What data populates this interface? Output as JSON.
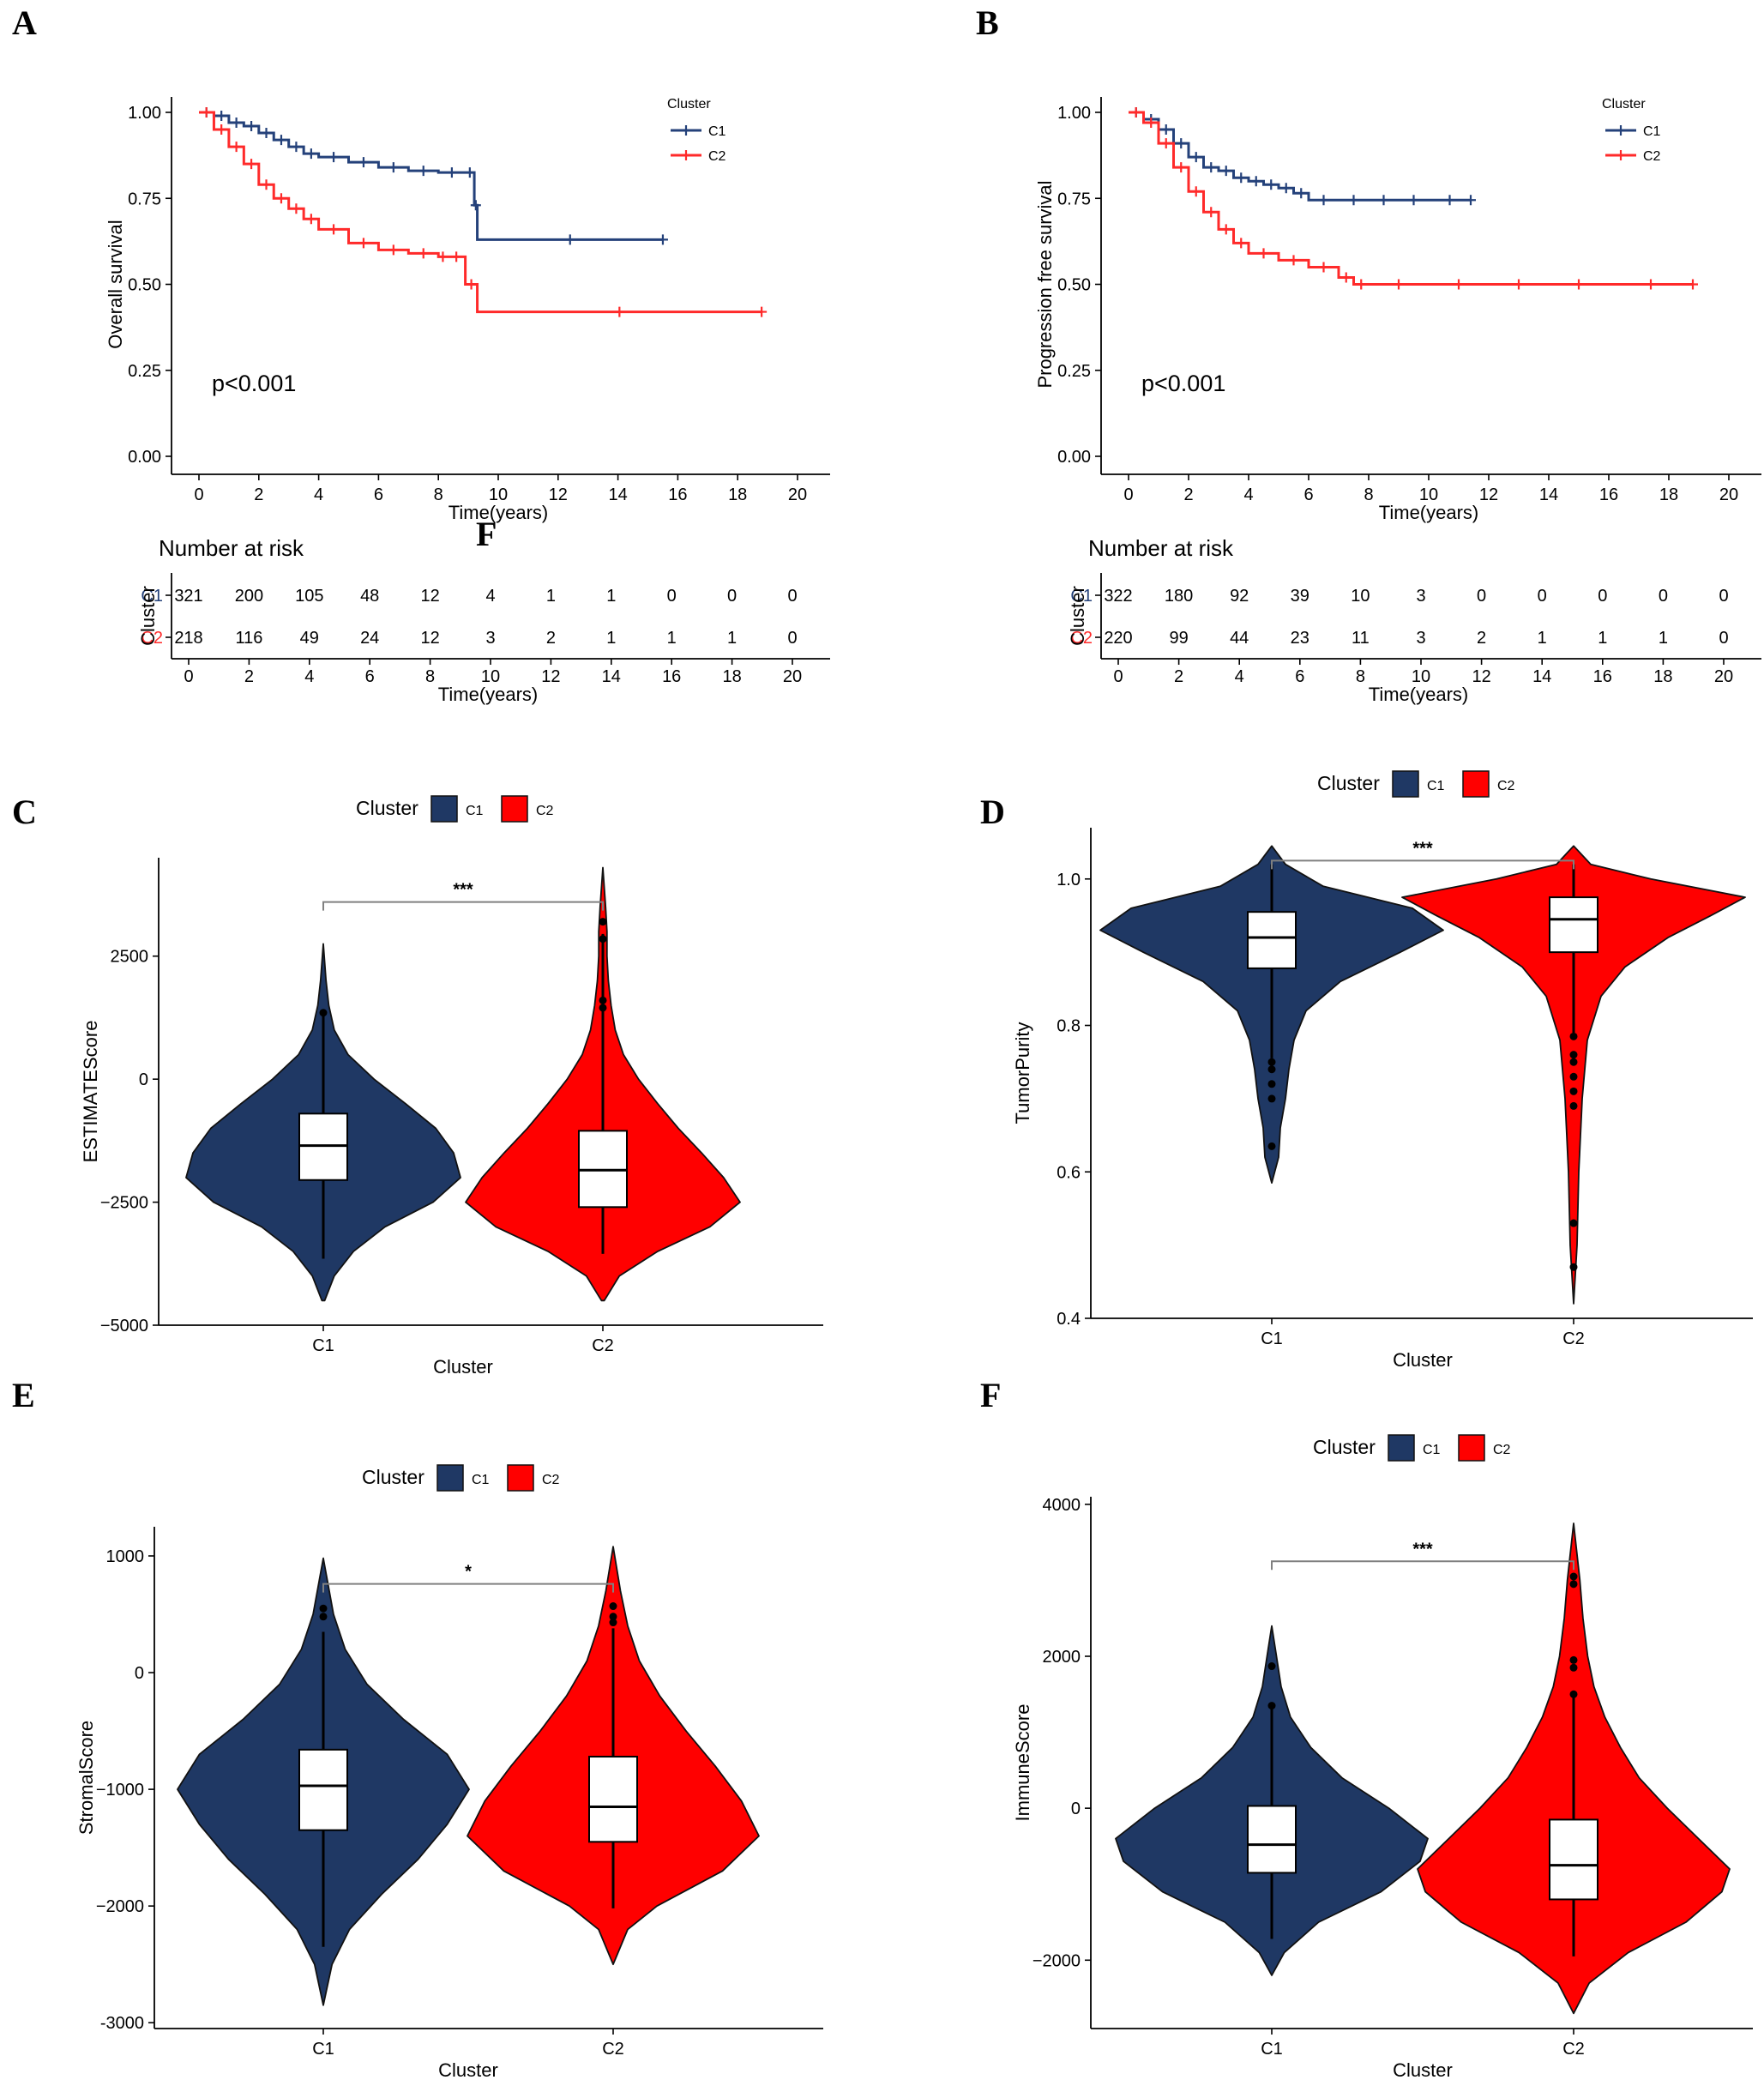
{
  "colors": {
    "c1": "#1f3864",
    "c2": "#ff0000",
    "c1_line": "#24417a",
    "c2_line": "#ff2a2a",
    "bracket": "#808080"
  },
  "chart_data": [
    {
      "panel": "A",
      "type": "line",
      "subtype": "kaplan-meier",
      "ylabel": "Overall survival",
      "xlabel": "Time(years)",
      "xlim": [
        0,
        20
      ],
      "ylim": [
        0,
        1
      ],
      "xticks": [
        "0",
        "2",
        "4",
        "6",
        "8",
        "10",
        "12",
        "14",
        "16",
        "18",
        "20"
      ],
      "yticks": [
        "0.00",
        "0.25",
        "0.50",
        "0.75",
        "1.00"
      ],
      "legend": {
        "title": "Cluster",
        "items": [
          "C1",
          "C2"
        ]
      },
      "pvalue": "p<0.001",
      "series": [
        {
          "name": "C1",
          "x": [
            0,
            0.5,
            1,
            1.5,
            2,
            2.5,
            3,
            3.5,
            4,
            5,
            6,
            7,
            8,
            8.9,
            9.2,
            9.3,
            15.5
          ],
          "y": [
            1,
            0.99,
            0.97,
            0.96,
            0.94,
            0.92,
            0.9,
            0.88,
            0.87,
            0.855,
            0.84,
            0.83,
            0.825,
            0.825,
            0.73,
            0.63,
            0.63
          ]
        },
        {
          "name": "C2",
          "x": [
            0,
            0.5,
            1,
            1.5,
            2,
            2.5,
            3,
            3.5,
            4,
            5,
            6,
            7,
            8,
            8.3,
            8.9,
            9.3,
            18.8
          ],
          "y": [
            1,
            0.95,
            0.9,
            0.85,
            0.79,
            0.75,
            0.72,
            0.69,
            0.66,
            0.62,
            0.6,
            0.59,
            0.58,
            0.58,
            0.5,
            0.42,
            0.42
          ]
        }
      ],
      "risk_table": {
        "title": "Number at risk",
        "ylabel": "Cluster",
        "xlabel": "Time(years)",
        "times": [
          "0",
          "2",
          "4",
          "6",
          "8",
          "10",
          "12",
          "14",
          "16",
          "18",
          "20"
        ],
        "rows": [
          {
            "label": "C1",
            "values": [
              "321",
              "200",
              "105",
              "48",
              "12",
              "4",
              "1",
              "1",
              "0",
              "0",
              "0"
            ]
          },
          {
            "label": "C2",
            "values": [
              "218",
              "116",
              "49",
              "24",
              "12",
              "3",
              "2",
              "1",
              "1",
              "1",
              "0"
            ]
          }
        ]
      },
      "stray_label": "F"
    },
    {
      "panel": "B",
      "type": "line",
      "subtype": "kaplan-meier",
      "ylabel": "Progression free survival",
      "xlabel": "Time(years)",
      "xlim": [
        0,
        20
      ],
      "ylim": [
        0,
        1
      ],
      "xticks": [
        "0",
        "2",
        "4",
        "6",
        "8",
        "10",
        "12",
        "14",
        "16",
        "18",
        "20"
      ],
      "yticks": [
        "0.00",
        "0.25",
        "0.50",
        "0.75",
        "1.00"
      ],
      "legend": {
        "title": "Cluster",
        "items": [
          "C1",
          "C2"
        ]
      },
      "pvalue": "p<0.001",
      "series": [
        {
          "name": "C1",
          "x": [
            0,
            0.5,
            1,
            1.5,
            2,
            2.5,
            3,
            3.5,
            4,
            4.5,
            5,
            5.5,
            6,
            7,
            8,
            9,
            10,
            11.4
          ],
          "y": [
            1,
            0.98,
            0.95,
            0.91,
            0.87,
            0.84,
            0.83,
            0.81,
            0.8,
            0.79,
            0.78,
            0.765,
            0.745,
            0.745,
            0.745,
            0.745,
            0.745,
            0.745
          ]
        },
        {
          "name": "C2",
          "x": [
            0,
            0.5,
            1,
            1.5,
            2,
            2.5,
            3,
            3.5,
            4,
            5,
            6,
            7,
            7.5,
            8,
            10,
            12,
            14,
            16,
            18.8
          ],
          "y": [
            1,
            0.97,
            0.91,
            0.84,
            0.77,
            0.71,
            0.66,
            0.62,
            0.59,
            0.57,
            0.55,
            0.52,
            0.5,
            0.5,
            0.5,
            0.5,
            0.5,
            0.5,
            0.5
          ]
        }
      ],
      "risk_table": {
        "title": "Number at risk",
        "ylabel": "Cluster",
        "xlabel": "Time(years)",
        "times": [
          "0",
          "2",
          "4",
          "6",
          "8",
          "10",
          "12",
          "14",
          "16",
          "18",
          "20"
        ],
        "rows": [
          {
            "label": "C1",
            "values": [
              "322",
              "180",
              "92",
              "39",
              "10",
              "3",
              "0",
              "0",
              "0",
              "0",
              "0"
            ]
          },
          {
            "label": "C2",
            "values": [
              "220",
              "99",
              "44",
              "23",
              "11",
              "3",
              "2",
              "1",
              "1",
              "1",
              "0"
            ]
          }
        ]
      }
    },
    {
      "panel": "C",
      "type": "violin",
      "ylabel": "ESTIMATEScore",
      "xlabel": "Cluster",
      "categories": [
        "C1",
        "C2"
      ],
      "ylim": [
        -5000,
        4500
      ],
      "yticks": [
        -5000,
        -2500,
        0,
        2500
      ],
      "ytick_labels": [
        "−5000",
        "−2500",
        "0",
        "2500"
      ],
      "legend": {
        "title": "Cluster",
        "items": [
          "C1",
          "C2"
        ]
      },
      "significance": "***",
      "bracket_y": 3600,
      "groups": [
        {
          "name": "C1",
          "min": -4500,
          "max": 2750,
          "q1": -2050,
          "median": -1350,
          "q3": -700,
          "whisker_low": -3650,
          "whisker_high": 1350,
          "outliers": [
            1350
          ],
          "density": [
            [
              -4500,
              0.01
            ],
            [
              -4000,
              0.08
            ],
            [
              -3500,
              0.22
            ],
            [
              -3000,
              0.45
            ],
            [
              -2500,
              0.8
            ],
            [
              -2000,
              1.0
            ],
            [
              -1500,
              0.95
            ],
            [
              -1000,
              0.82
            ],
            [
              -500,
              0.6
            ],
            [
              0,
              0.37
            ],
            [
              500,
              0.18
            ],
            [
              1000,
              0.08
            ],
            [
              1500,
              0.04
            ],
            [
              2000,
              0.02
            ],
            [
              2750,
              0.0
            ]
          ]
        },
        {
          "name": "C2",
          "min": -4500,
          "max": 4300,
          "q1": -2600,
          "median": -1850,
          "q3": -1050,
          "whisker_low": -3550,
          "whisker_high": 2950,
          "outliers": [
            1450,
            1600,
            2850,
            3200
          ],
          "density": [
            [
              -4500,
              0.01
            ],
            [
              -4000,
              0.12
            ],
            [
              -3500,
              0.4
            ],
            [
              -3000,
              0.78
            ],
            [
              -2500,
              1.0
            ],
            [
              -2000,
              0.88
            ],
            [
              -1500,
              0.72
            ],
            [
              -1000,
              0.55
            ],
            [
              -500,
              0.4
            ],
            [
              0,
              0.26
            ],
            [
              500,
              0.15
            ],
            [
              1000,
              0.09
            ],
            [
              1500,
              0.06
            ],
            [
              2000,
              0.04
            ],
            [
              2500,
              0.03
            ],
            [
              3000,
              0.03
            ],
            [
              3500,
              0.02
            ],
            [
              4300,
              0.0
            ]
          ]
        }
      ]
    },
    {
      "panel": "D",
      "type": "violin",
      "ylabel": "TumorPurity",
      "xlabel": "Cluster",
      "categories": [
        "C1",
        "C2"
      ],
      "ylim": [
        0.4,
        1.07
      ],
      "yticks": [
        0.4,
        0.6,
        0.8,
        1.0
      ],
      "ytick_labels": [
        "0.4",
        "0.6",
        "0.8",
        "1.0"
      ],
      "legend": {
        "title": "Cluster",
        "items": [
          "C1",
          "C2"
        ]
      },
      "significance": "***",
      "bracket_y": 1.025,
      "groups": [
        {
          "name": "C1",
          "min": 0.585,
          "max": 1.045,
          "q1": 0.878,
          "median": 0.92,
          "q3": 0.955,
          "whisker_low": 0.755,
          "whisker_high": 1.02,
          "outliers": [
            0.7,
            0.72,
            0.74,
            0.75,
            0.635
          ],
          "density": [
            [
              0.585,
              0.0
            ],
            [
              0.62,
              0.04
            ],
            [
              0.66,
              0.05
            ],
            [
              0.7,
              0.08
            ],
            [
              0.74,
              0.1
            ],
            [
              0.78,
              0.13
            ],
            [
              0.82,
              0.2
            ],
            [
              0.86,
              0.4
            ],
            [
              0.9,
              0.75
            ],
            [
              0.93,
              1.0
            ],
            [
              0.96,
              0.82
            ],
            [
              0.99,
              0.3
            ],
            [
              1.02,
              0.08
            ],
            [
              1.045,
              0.0
            ]
          ]
        },
        {
          "name": "C2",
          "min": 0.42,
          "max": 1.045,
          "q1": 0.9,
          "median": 0.945,
          "q3": 0.975,
          "whisker_low": 0.79,
          "whisker_high": 1.02,
          "outliers": [
            0.785,
            0.76,
            0.75,
            0.73,
            0.71,
            0.69,
            0.53,
            0.47
          ],
          "density": [
            [
              0.42,
              0.0
            ],
            [
              0.5,
              0.02
            ],
            [
              0.6,
              0.03
            ],
            [
              0.7,
              0.05
            ],
            [
              0.78,
              0.08
            ],
            [
              0.84,
              0.16
            ],
            [
              0.88,
              0.3
            ],
            [
              0.92,
              0.55
            ],
            [
              0.95,
              0.8
            ],
            [
              0.975,
              1.0
            ],
            [
              1.0,
              0.45
            ],
            [
              1.02,
              0.1
            ],
            [
              1.045,
              0.0
            ]
          ]
        }
      ]
    },
    {
      "panel": "E",
      "type": "violin",
      "ylabel": "StromalScore",
      "xlabel": "Cluster",
      "categories": [
        "C1",
        "C2"
      ],
      "ylim": [
        -3050,
        1250
      ],
      "yticks": [
        -3000,
        -2000,
        -1000,
        0,
        1000
      ],
      "ytick_labels": [
        "-3000",
        "−2000",
        "−1000",
        "0",
        "1000"
      ],
      "legend": {
        "title": "Cluster",
        "items": [
          "C1",
          "C2"
        ]
      },
      "significance": "*",
      "bracket_y": 760,
      "groups": [
        {
          "name": "C1",
          "min": -2850,
          "max": 980,
          "q1": -1350,
          "median": -970,
          "q3": -660,
          "whisker_low": -2350,
          "whisker_high": 350,
          "outliers": [
            480,
            550
          ],
          "density": [
            [
              -2850,
              0.0
            ],
            [
              -2500,
              0.06
            ],
            [
              -2200,
              0.18
            ],
            [
              -1900,
              0.4
            ],
            [
              -1600,
              0.65
            ],
            [
              -1300,
              0.85
            ],
            [
              -1000,
              1.0
            ],
            [
              -700,
              0.85
            ],
            [
              -400,
              0.55
            ],
            [
              -100,
              0.3
            ],
            [
              200,
              0.15
            ],
            [
              500,
              0.07
            ],
            [
              980,
              0.0
            ]
          ]
        },
        {
          "name": "C2",
          "min": -2500,
          "max": 1080,
          "q1": -1450,
          "median": -1150,
          "q3": -720,
          "whisker_low": -2020,
          "whisker_high": 380,
          "outliers": [
            430,
            480,
            570
          ],
          "density": [
            [
              -2500,
              0.0
            ],
            [
              -2200,
              0.1
            ],
            [
              -2000,
              0.3
            ],
            [
              -1700,
              0.75
            ],
            [
              -1400,
              1.0
            ],
            [
              -1100,
              0.88
            ],
            [
              -800,
              0.7
            ],
            [
              -500,
              0.5
            ],
            [
              -200,
              0.32
            ],
            [
              100,
              0.18
            ],
            [
              400,
              0.1
            ],
            [
              700,
              0.05
            ],
            [
              1080,
              0.0
            ]
          ]
        }
      ]
    },
    {
      "panel": "F",
      "type": "violin",
      "ylabel": "ImmuneScore",
      "xlabel": "Cluster",
      "categories": [
        "C1",
        "C2"
      ],
      "ylim": [
        -2900,
        4100
      ],
      "yticks": [
        -2000,
        0,
        2000,
        4000
      ],
      "ytick_labels": [
        "−2000",
        "0",
        "2000",
        "4000"
      ],
      "legend": {
        "title": "Cluster",
        "items": [
          "C1",
          "C2"
        ]
      },
      "significance": "***",
      "bracket_y": 3250,
      "groups": [
        {
          "name": "C1",
          "min": -2200,
          "max": 2400,
          "q1": -850,
          "median": -480,
          "q3": 30,
          "whisker_low": -1720,
          "whisker_high": 1350,
          "outliers": [
            1350,
            1870
          ],
          "density": [
            [
              -2200,
              0.0
            ],
            [
              -1900,
              0.08
            ],
            [
              -1500,
              0.3
            ],
            [
              -1100,
              0.7
            ],
            [
              -700,
              0.95
            ],
            [
              -400,
              1.0
            ],
            [
              0,
              0.75
            ],
            [
              400,
              0.45
            ],
            [
              800,
              0.25
            ],
            [
              1200,
              0.12
            ],
            [
              1600,
              0.06
            ],
            [
              2000,
              0.03
            ],
            [
              2400,
              0.0
            ]
          ]
        },
        {
          "name": "C2",
          "min": -2700,
          "max": 3750,
          "q1": -1200,
          "median": -750,
          "q3": -150,
          "whisker_low": -1950,
          "whisker_high": 1500,
          "outliers": [
            1500,
            1850,
            1950,
            2950,
            3050
          ],
          "density": [
            [
              -2700,
              0.0
            ],
            [
              -2300,
              0.1
            ],
            [
              -1900,
              0.35
            ],
            [
              -1500,
              0.72
            ],
            [
              -1100,
              0.95
            ],
            [
              -800,
              1.0
            ],
            [
              -400,
              0.8
            ],
            [
              0,
              0.6
            ],
            [
              400,
              0.42
            ],
            [
              800,
              0.3
            ],
            [
              1200,
              0.2
            ],
            [
              1600,
              0.13
            ],
            [
              2000,
              0.09
            ],
            [
              2500,
              0.06
            ],
            [
              3000,
              0.04
            ],
            [
              3750,
              0.0
            ]
          ]
        }
      ]
    }
  ]
}
